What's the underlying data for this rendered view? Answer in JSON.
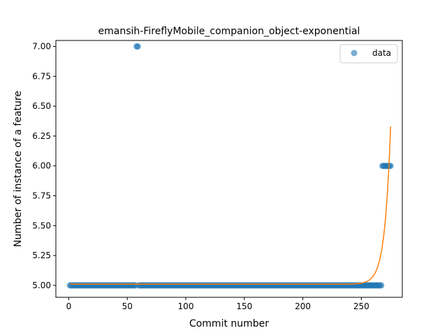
{
  "chart_data": {
    "type": "scatter",
    "title": "emansih-FireflyMobile_companion_object-exponential",
    "xlabel": "Commit number",
    "ylabel": "Number of instance of a feature",
    "xlim": [
      -11,
      285
    ],
    "ylim": [
      4.9,
      7.05
    ],
    "xticks": [
      0,
      50,
      100,
      150,
      200,
      250
    ],
    "yticks": [
      5.0,
      5.25,
      5.5,
      5.75,
      6.0,
      6.25,
      6.5,
      6.75,
      7.0
    ],
    "ytick_labels": [
      "5.00",
      "5.25",
      "5.50",
      "5.75",
      "6.00",
      "6.25",
      "6.50",
      "6.75",
      "7.00"
    ],
    "legend": {
      "position": "top-right",
      "entries": [
        "data"
      ]
    },
    "grid": false,
    "series": [
      {
        "name": "data",
        "kind": "scatter",
        "color": "#1f77b4",
        "segments": [
          {
            "x_from": 1,
            "x_to": 57,
            "y": 5.0
          },
          {
            "x_from": 60,
            "x_to": 267,
            "y": 5.0
          }
        ],
        "points": [
          {
            "x": 58,
            "y": 7.0
          },
          {
            "x": 59,
            "y": 7.0
          },
          {
            "x": 268,
            "y": 6.0
          },
          {
            "x": 269,
            "y": 6.0
          },
          {
            "x": 270,
            "y": 6.0
          },
          {
            "x": 271,
            "y": 6.0
          },
          {
            "x": 272,
            "y": 6.0
          },
          {
            "x": 273,
            "y": 6.0
          },
          {
            "x": 274,
            "y": 6.0
          },
          {
            "x": 275,
            "y": 6.0
          }
        ]
      },
      {
        "kind": "line",
        "color": "#ff7f0e",
        "model": "exponential",
        "x_range": [
          1,
          275
        ],
        "fit": {
          "baseline": 5.01,
          "a": 1.32,
          "b": 0.2,
          "x0": 275
        }
      }
    ]
  }
}
